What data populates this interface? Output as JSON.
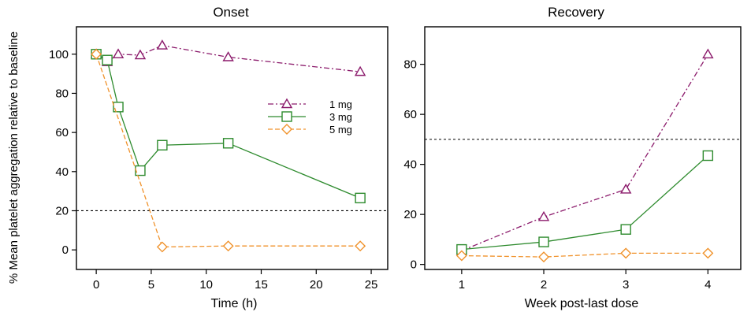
{
  "y_axis_label": "% Mean platelet aggregation relative to baseline",
  "legend": {
    "items": [
      {
        "label": "1 mg",
        "color": "#8b1a6b",
        "marker": "triangle",
        "dash": "dashdot"
      },
      {
        "label": "3 mg",
        "color": "#2e8b2e",
        "marker": "square",
        "dash": "solid"
      },
      {
        "label": "5 mg",
        "color": "#f0922b",
        "marker": "diamond",
        "dash": "dashed"
      }
    ]
  },
  "chart_data": [
    {
      "type": "line",
      "title": "Onset",
      "xlabel": "Time (h)",
      "ylabel": "% Mean platelet aggregation relative to baseline",
      "xlim": [
        -1.8,
        26.5
      ],
      "ylim": [
        -10,
        114
      ],
      "xticks": [
        "0",
        "5",
        "10",
        "15",
        "20",
        "25"
      ],
      "yticks": [
        "0",
        "20",
        "40",
        "60",
        "80",
        "100"
      ],
      "reference_line_y": 20,
      "series": [
        {
          "name": "1 mg",
          "color": "#8b1a6b",
          "marker": "triangle",
          "dash": "dashdot",
          "x": [
            0,
            1,
            2,
            4,
            6,
            12,
            24
          ],
          "y": [
            100,
            96,
            100,
            99.5,
            104.5,
            98.5,
            91
          ]
        },
        {
          "name": "3 mg",
          "color": "#2e8b2e",
          "marker": "square",
          "dash": "solid",
          "x": [
            0,
            1,
            2,
            4,
            6,
            12,
            24
          ],
          "y": [
            100,
            97,
            73,
            40.5,
            53.5,
            54.5,
            26.5
          ]
        },
        {
          "name": "5 mg",
          "color": "#f0922b",
          "marker": "diamond",
          "dash": "dashed",
          "x": [
            0,
            6,
            12,
            24
          ],
          "y": [
            100,
            1.5,
            2,
            2
          ]
        }
      ]
    },
    {
      "type": "line",
      "title": "Recovery",
      "xlabel": "Week post-last dose",
      "ylim": [
        -2,
        95
      ],
      "xlim": [
        0.55,
        4.4
      ],
      "xticks": [
        "1",
        "2",
        "3",
        "4"
      ],
      "yticks": [
        "0",
        "20",
        "40",
        "60",
        "80"
      ],
      "reference_line_y": 50,
      "series": [
        {
          "name": "1 mg",
          "color": "#8b1a6b",
          "marker": "triangle",
          "dash": "dashdot",
          "x": [
            1,
            2,
            3,
            4
          ],
          "y": [
            5.5,
            19,
            30,
            84
          ]
        },
        {
          "name": "3 mg",
          "color": "#2e8b2e",
          "marker": "square",
          "dash": "solid",
          "x": [
            1,
            2,
            3,
            4
          ],
          "y": [
            6,
            9,
            14,
            43.5
          ]
        },
        {
          "name": "5 mg",
          "color": "#f0922b",
          "marker": "diamond",
          "dash": "dashed",
          "x": [
            1,
            2,
            3,
            4
          ],
          "y": [
            3.5,
            3,
            4.5,
            4.5
          ]
        }
      ]
    }
  ]
}
